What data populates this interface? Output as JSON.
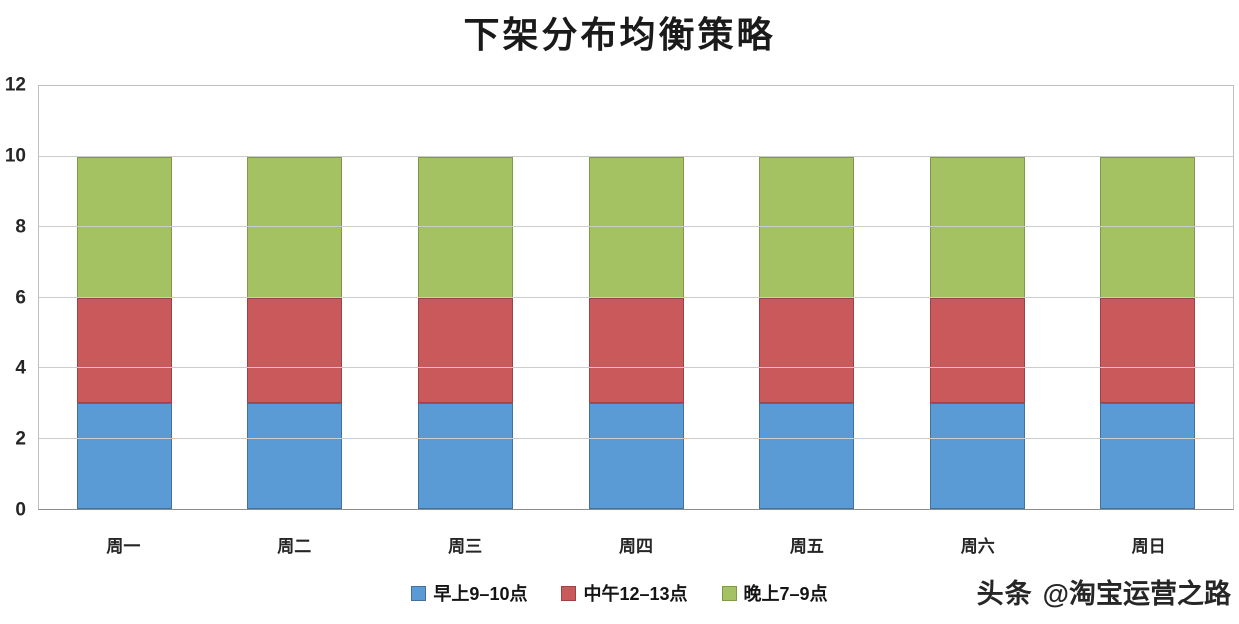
{
  "title": "下架分布均衡策略",
  "watermark": {
    "brand": "头条",
    "handle": "@淘宝运营之路"
  },
  "chart_data": {
    "type": "bar",
    "stacked": true,
    "title": "下架分布均衡策略",
    "xlabel": "",
    "ylabel": "",
    "categories": [
      "周一",
      "周二",
      "周三",
      "周四",
      "周五",
      "周六",
      "周日"
    ],
    "series": [
      {
        "name": "早上9–10点",
        "color": "#5B9BD5",
        "border": "#41719C",
        "values": [
          3,
          3,
          3,
          3,
          3,
          3,
          3
        ]
      },
      {
        "name": "中午12–13点",
        "color": "#C9595B",
        "border": "#9C4345",
        "values": [
          3,
          3,
          3,
          3,
          3,
          3,
          3
        ]
      },
      {
        "name": "晚上7–9点",
        "color": "#A5C262",
        "border": "#7E9A48",
        "values": [
          4,
          4,
          4,
          4,
          4,
          4,
          4
        ]
      }
    ],
    "ylim": [
      0,
      12
    ],
    "yticks": [
      0,
      2,
      4,
      6,
      8,
      10,
      12
    ],
    "grid": true,
    "legend_position": "bottom"
  }
}
